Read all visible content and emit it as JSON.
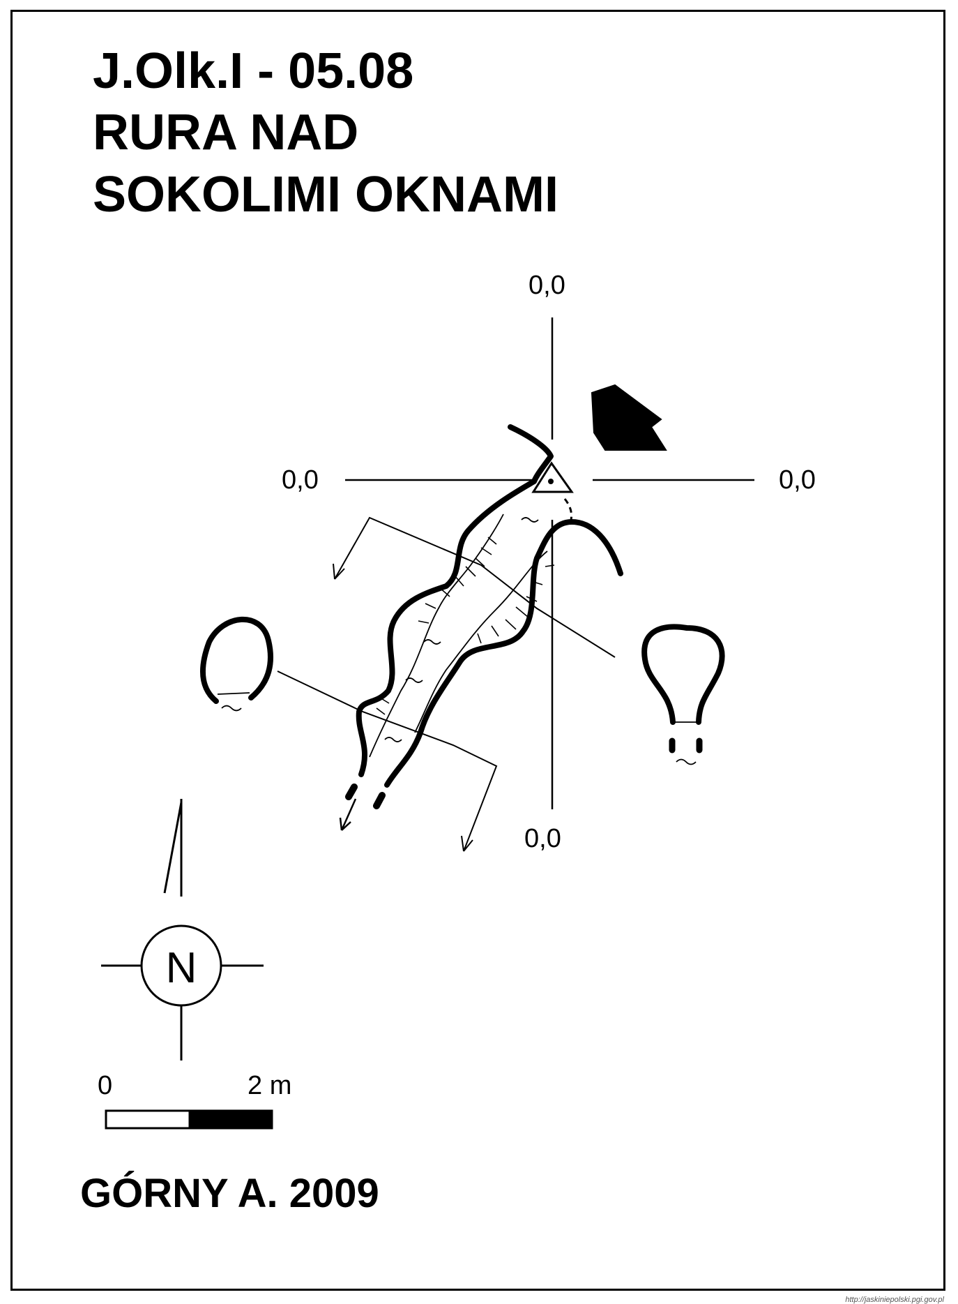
{
  "title": {
    "line1": "J.Olk.I - 05.08",
    "line2": "RURA NAD",
    "line3": "SOKOLIMI  OKNAMI"
  },
  "coordinates": {
    "top": "0,0",
    "left": "0,0",
    "right": "0,0",
    "bottom": "0,0"
  },
  "north_label": "N",
  "scale": {
    "start_label": "0",
    "end_label": "2 m",
    "length_m": 2
  },
  "author": "GÓRNY A.  2009",
  "credit": "http://jaskiniepolski.pgi.gov.pl",
  "colors": {
    "ink": "#000000",
    "paper": "#ffffff"
  }
}
